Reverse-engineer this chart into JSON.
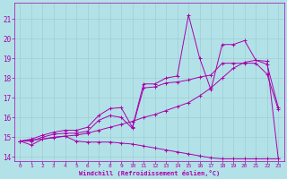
{
  "xlabel": "Windchill (Refroidissement éolien,°C)",
  "background_color": "#b2e2e8",
  "grid_color": "#9ecdd4",
  "line_color": "#aa00aa",
  "xlim": [
    -0.5,
    23.5
  ],
  "ylim": [
    13.8,
    21.8
  ],
  "yticks": [
    14,
    15,
    16,
    17,
    18,
    19,
    20,
    21
  ],
  "xticks": [
    0,
    1,
    2,
    3,
    4,
    5,
    6,
    7,
    8,
    9,
    10,
    11,
    12,
    13,
    14,
    15,
    16,
    17,
    18,
    19,
    20,
    21,
    22,
    23
  ],
  "series": [
    {
      "x": [
        0,
        1,
        2,
        3,
        4,
        5,
        6,
        7,
        8,
        9,
        10,
        11,
        12,
        13,
        14,
        15,
        16,
        17,
        18,
        19,
        20,
        21,
        22,
        23
      ],
      "y": [
        14.8,
        14.6,
        14.9,
        15.0,
        15.05,
        14.8,
        14.75,
        14.75,
        14.75,
        14.7,
        14.65,
        14.55,
        14.45,
        14.35,
        14.25,
        14.15,
        14.05,
        13.95,
        13.9,
        13.9,
        13.9,
        13.9,
        13.9,
        13.9
      ]
    },
    {
      "x": [
        0,
        1,
        2,
        3,
        4,
        5,
        6,
        7,
        8,
        9,
        10,
        11,
        12,
        13,
        14,
        15,
        16,
        17,
        18,
        19,
        20,
        21,
        22,
        23
      ],
      "y": [
        14.8,
        14.8,
        15.0,
        15.15,
        15.2,
        15.2,
        15.3,
        15.85,
        16.1,
        16.0,
        15.45,
        17.5,
        17.55,
        17.75,
        17.8,
        17.9,
        18.05,
        18.15,
        18.75,
        18.75,
        18.75,
        18.75,
        18.2,
        16.4
      ]
    },
    {
      "x": [
        0,
        1,
        2,
        3,
        4,
        5,
        6,
        7,
        8,
        9,
        10,
        11,
        12,
        13,
        14,
        15,
        16,
        17,
        18,
        19,
        20,
        21,
        22,
        23
      ],
      "y": [
        14.8,
        14.9,
        15.1,
        15.25,
        15.35,
        15.35,
        15.5,
        16.1,
        16.45,
        16.5,
        15.5,
        17.7,
        17.7,
        18.0,
        18.1,
        21.2,
        19.0,
        17.4,
        19.7,
        19.7,
        19.9,
        18.9,
        18.7,
        16.5
      ]
    },
    {
      "x": [
        0,
        1,
        2,
        3,
        4,
        5,
        6,
        7,
        8,
        9,
        10,
        11,
        12,
        13,
        14,
        15,
        16,
        17,
        18,
        19,
        20,
        21,
        22,
        23
      ],
      "y": [
        14.8,
        14.85,
        14.9,
        14.97,
        15.05,
        15.1,
        15.2,
        15.35,
        15.5,
        15.65,
        15.8,
        16.0,
        16.15,
        16.35,
        16.55,
        16.75,
        17.1,
        17.5,
        18.0,
        18.5,
        18.8,
        18.9,
        18.85,
        13.9
      ]
    }
  ]
}
